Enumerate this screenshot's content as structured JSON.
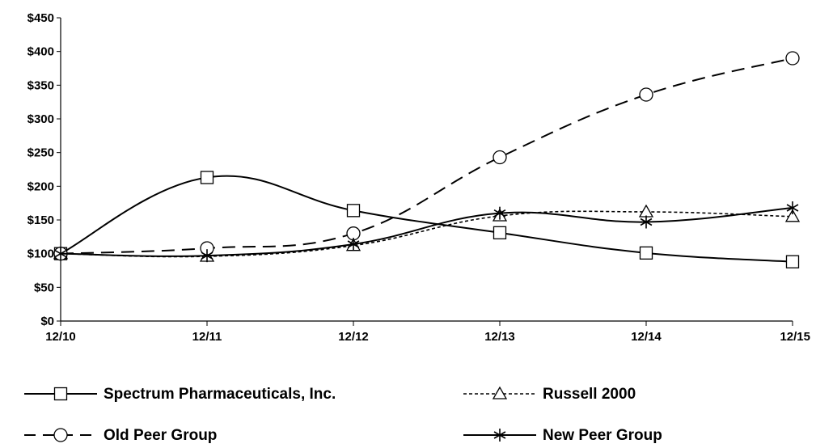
{
  "chart_data": {
    "type": "line",
    "categories": [
      "12/10",
      "12/11",
      "12/12",
      "12/13",
      "12/14",
      "12/15"
    ],
    "ylim": [
      0,
      450
    ],
    "y_ticks": [
      0,
      50,
      100,
      150,
      200,
      250,
      300,
      350,
      400,
      450
    ],
    "y_tick_labels": [
      "$0",
      "$50",
      "$100",
      "$150",
      "$200",
      "$250",
      "$300",
      "$350",
      "$400",
      "$450"
    ],
    "grid": false,
    "legend_position": "bottom",
    "series": [
      {
        "name": "Spectrum Pharmaceuticals, Inc.",
        "marker": "square",
        "dash": "solid",
        "values": [
          100,
          213,
          164,
          131,
          101,
          88
        ]
      },
      {
        "name": "Russell 2000",
        "marker": "triangle",
        "dash": "dotted",
        "values": [
          100,
          96,
          112,
          156,
          162,
          155
        ]
      },
      {
        "name": "Old Peer Group",
        "marker": "circle",
        "dash": "dashed",
        "values": [
          100,
          108,
          130,
          243,
          336,
          390
        ]
      },
      {
        "name": "New Peer Group",
        "marker": "asterisk",
        "dash": "solid",
        "values": [
          100,
          97,
          114,
          160,
          147,
          168
        ]
      }
    ]
  }
}
